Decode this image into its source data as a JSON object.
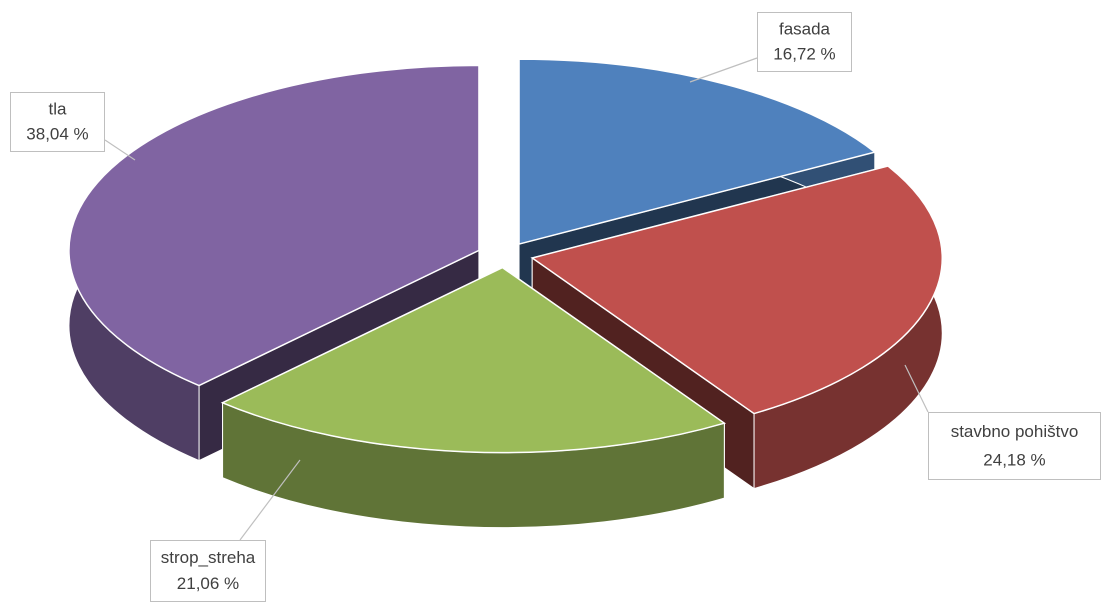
{
  "chart_data": {
    "type": "pie3d",
    "categories": [
      "fasada",
      "stavbno pohištvo",
      "strop_streha",
      "tla"
    ],
    "values": [
      16.72,
      24.18,
      21.06,
      38.04
    ],
    "value_labels": [
      "16,72 %",
      "24,18 %",
      "21,06 %",
      "38,04 %"
    ],
    "colors": [
      "#4f81bd",
      "#c0504d",
      "#9bbb59",
      "#8064a2"
    ]
  }
}
